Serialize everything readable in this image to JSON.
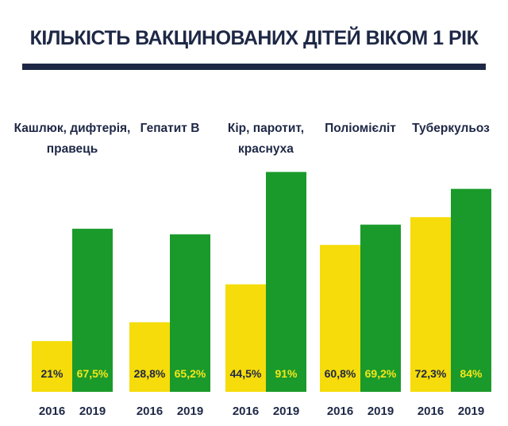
{
  "chart_data": {
    "type": "bar",
    "title": "КІЛЬКІСТЬ ВАКЦИНОВАНИХ ДІТЕЙ ВІКОМ 1 РІК",
    "categories": [
      [
        "Кашлюк, дифтерія,",
        "правець"
      ],
      [
        "Гепатит В"
      ],
      [
        "Кір, паротит,",
        "краснуха"
      ],
      [
        "Поліомієліт"
      ],
      [
        "Туберкульоз"
      ]
    ],
    "series": [
      {
        "name": "2016",
        "color": "#f5dc0a",
        "label_color": "#1e2846",
        "values": [
          21,
          28.8,
          44.5,
          60.8,
          72.3
        ],
        "labels": [
          "21%",
          "28,8%",
          "44,5%",
          "60,8%",
          "72,3%"
        ]
      },
      {
        "name": "2019",
        "color": "#1a9a2a",
        "label_color": "#f5e61a",
        "values": [
          67.5,
          65.2,
          91,
          69.2,
          84
        ],
        "labels": [
          "67,5%",
          "65,2%",
          "91%",
          "69,2%",
          "84%"
        ]
      }
    ],
    "ylim": [
      0,
      100
    ],
    "grid": false
  }
}
